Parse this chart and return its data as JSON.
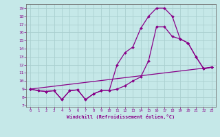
{
  "xlabel": "Windchill (Refroidissement éolien,°C)",
  "background_color": "#c5e8e8",
  "grid_color": "#aacfcf",
  "line_color": "#880088",
  "xlim": [
    -0.5,
    23.5
  ],
  "ylim": [
    6.8,
    19.5
  ],
  "xticks": [
    0,
    1,
    2,
    3,
    4,
    5,
    6,
    7,
    8,
    9,
    10,
    11,
    12,
    13,
    14,
    15,
    16,
    17,
    18,
    19,
    20,
    21,
    22,
    23
  ],
  "yticks": [
    7,
    8,
    9,
    10,
    11,
    12,
    13,
    14,
    15,
    16,
    17,
    18,
    19
  ],
  "line1_x": [
    0,
    1,
    2,
    3,
    4,
    5,
    6,
    7,
    8,
    9,
    10,
    11,
    12,
    13,
    14,
    15,
    16,
    17,
    18,
    19,
    20,
    21,
    22,
    23
  ],
  "line1_y": [
    9.0,
    8.8,
    8.7,
    8.8,
    7.7,
    8.8,
    8.9,
    7.7,
    8.4,
    8.8,
    8.8,
    12.0,
    13.5,
    14.2,
    16.5,
    18.0,
    19.0,
    19.0,
    18.0,
    15.2,
    14.7,
    13.0,
    11.5,
    11.7
  ],
  "line2_x": [
    0,
    1,
    2,
    3,
    4,
    5,
    6,
    7,
    8,
    9,
    10,
    11,
    12,
    13,
    14,
    15,
    16,
    17,
    18,
    19,
    20,
    21,
    22,
    23
  ],
  "line2_y": [
    9.0,
    8.8,
    8.7,
    8.8,
    7.7,
    8.8,
    8.9,
    7.7,
    8.4,
    8.8,
    8.8,
    9.0,
    9.4,
    10.0,
    10.5,
    12.5,
    16.7,
    16.7,
    15.5,
    15.2,
    14.7,
    13.0,
    11.5,
    11.7
  ],
  "line3_x": [
    0,
    23
  ],
  "line3_y": [
    9.0,
    11.7
  ]
}
